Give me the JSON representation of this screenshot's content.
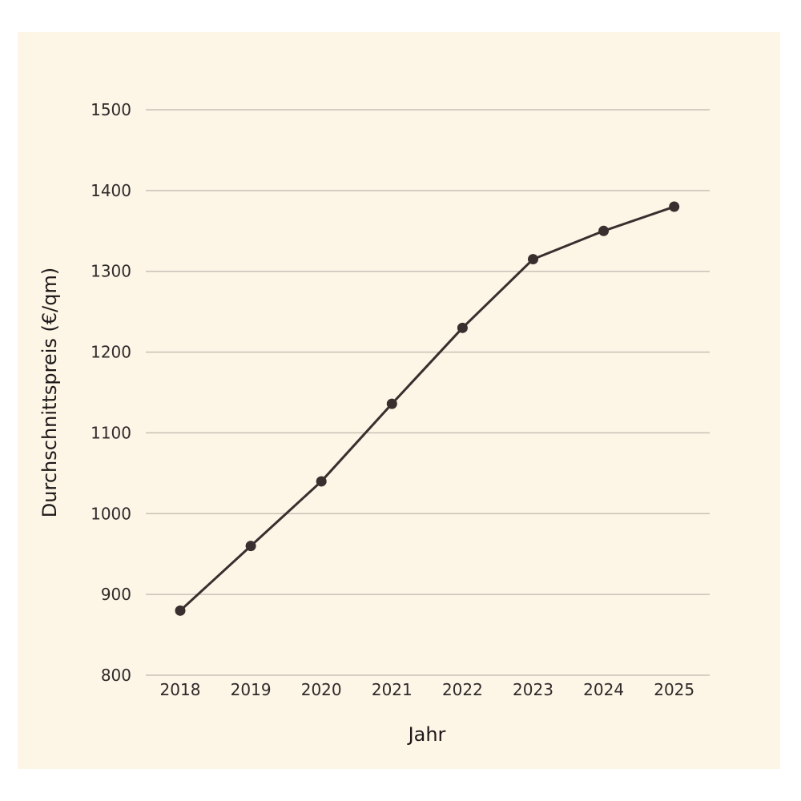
{
  "colors": {
    "page_background": "#ffffff",
    "panel_background": "#fdf5e6",
    "grid": "#c8c1b6",
    "line": "#3a2f2f",
    "marker": "#3a2f2f",
    "text": "#2e2a2a"
  },
  "chart_data": {
    "type": "line",
    "title": "",
    "xlabel": "Jahr",
    "ylabel": "Durchschnittspreis (€/qm)",
    "categories": [
      "2018",
      "2019",
      "2020",
      "2021",
      "2022",
      "2023",
      "2024",
      "2025"
    ],
    "series": [
      {
        "values": [
          880,
          960,
          1040,
          1136,
          1230,
          1315,
          1350,
          1380
        ]
      }
    ],
    "ylim": [
      800,
      1500
    ],
    "yticks": [
      800,
      900,
      1000,
      1100,
      1200,
      1300,
      1400,
      1500
    ],
    "grid": true,
    "grid_axis": "y",
    "markers": true,
    "legend": "none"
  }
}
